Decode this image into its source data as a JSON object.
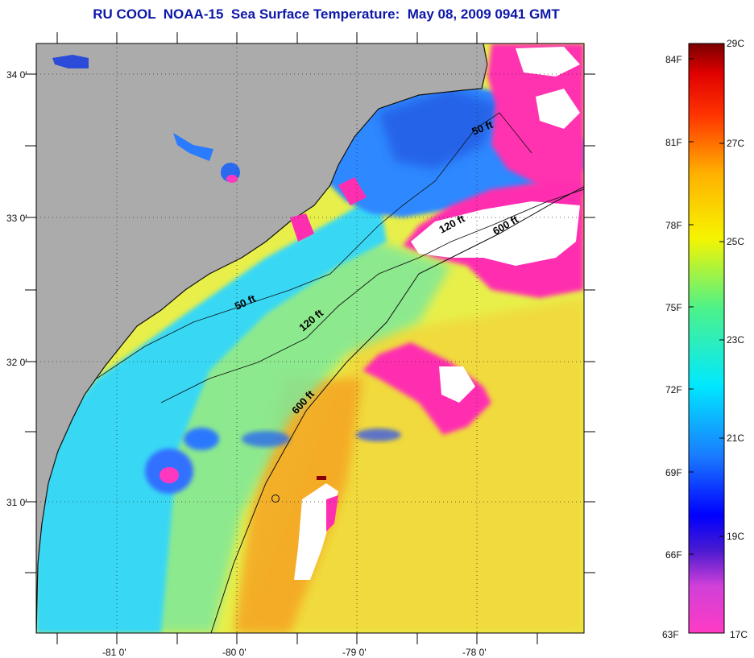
{
  "title": "RU COOL  NOAA-15  Sea Surface Temperature:  May 08, 2009 0941 GMT",
  "map": {
    "lat_ticks": [
      "34 0'",
      "33 0'",
      "32 0'",
      "31 0'"
    ],
    "lon_ticks": [
      "-81 0'",
      "-80 0'",
      "-79 0'",
      "-78 0'"
    ],
    "isobaths": [
      {
        "id": "50ft-north",
        "label": "50 ft"
      },
      {
        "id": "50ft-south",
        "label": "50 ft"
      },
      {
        "id": "120ft-north",
        "label": "120 ft"
      },
      {
        "id": "120ft-south",
        "label": "120 ft"
      },
      {
        "id": "600ft-north",
        "label": "600 ft"
      },
      {
        "id": "600ft-south",
        "label": "600 ft"
      }
    ],
    "colors": {
      "land": "#ababab",
      "cloud": "#ffffff",
      "cold_magenta": "#ff2eb0",
      "cool_blue": "#2a7dff",
      "cyan": "#33dcff",
      "warm_yellow": "#eef23a",
      "orange": "#f7a21a"
    }
  },
  "colorbar": {
    "fahrenheit_labels": [
      "84F",
      "81F",
      "78F",
      "75F",
      "72F",
      "69F",
      "66F",
      "63F"
    ],
    "celsius_labels": [
      "29C",
      "27C",
      "25C",
      "23C",
      "21C",
      "19C",
      "17C"
    ]
  }
}
